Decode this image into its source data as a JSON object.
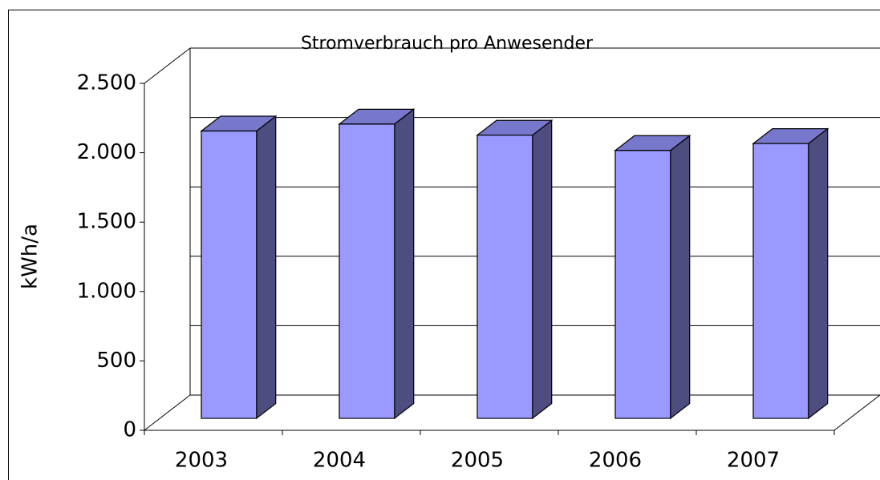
{
  "chart_data": {
    "type": "bar3d",
    "title": "Stromverbrauch pro Anwesender",
    "y_label": "kWh/a",
    "categories": [
      "2003",
      "2004",
      "2005",
      "2006",
      "2007"
    ],
    "values": [
      2070,
      2120,
      2040,
      1930,
      1980
    ],
    "colors": {
      "front": "#9999ff",
      "side": "#4d4d80",
      "top": "#7777cc"
    },
    "ylim": [
      0,
      2500
    ],
    "yticks": [
      {
        "value": 0,
        "label": "0"
      },
      {
        "value": 500,
        "label": "500"
      },
      {
        "value": 1000,
        "label": "1.000"
      },
      {
        "value": 1500,
        "label": "1.500"
      },
      {
        "value": 2000,
        "label": "2.000"
      },
      {
        "value": 2500,
        "label": "2.500"
      }
    ],
    "grid": true
  }
}
